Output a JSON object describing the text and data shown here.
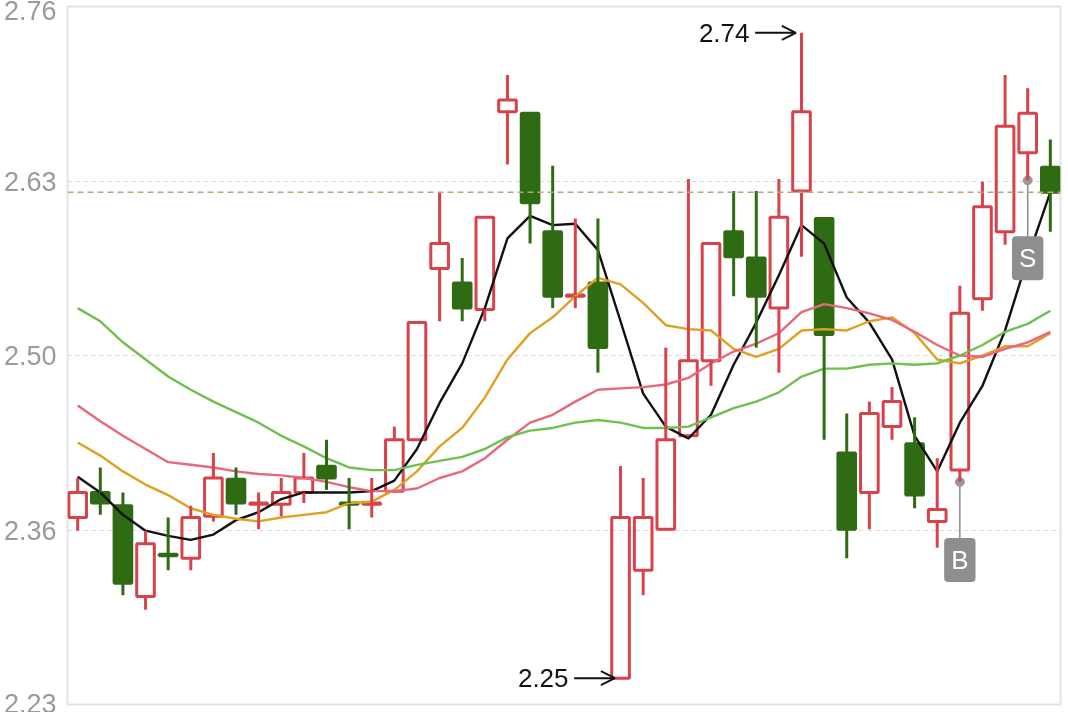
{
  "chart_data": {
    "type": "candlestick",
    "categories": [
      null,
      null,
      null,
      null,
      null,
      null,
      null,
      null,
      null,
      null,
      null,
      null,
      null,
      null,
      null,
      null,
      null,
      null,
      null,
      null,
      null,
      null,
      null,
      null,
      null,
      null,
      null,
      null,
      null,
      null,
      null,
      null,
      null,
      null,
      null,
      null,
      null,
      null,
      null,
      null,
      null,
      null,
      null,
      null
    ],
    "ohlc": [
      [
        2.372,
        2.402,
        2.362,
        2.391
      ],
      [
        2.391,
        2.41,
        2.374,
        2.383
      ],
      [
        2.381,
        2.391,
        2.313,
        2.322
      ],
      [
        2.312,
        2.362,
        2.302,
        2.352
      ],
      [
        2.344,
        2.372,
        2.332,
        2.343
      ],
      [
        2.341,
        2.381,
        2.332,
        2.372
      ],
      [
        2.373,
        2.421,
        2.369,
        2.402
      ],
      [
        2.401,
        2.41,
        2.374,
        2.383
      ],
      [
        2.382,
        2.391,
        2.363,
        2.383
      ],
      [
        2.382,
        2.402,
        2.373,
        2.391
      ],
      [
        2.391,
        2.421,
        2.383,
        2.402
      ],
      [
        2.411,
        2.431,
        2.393,
        2.402
      ],
      [
        2.383,
        2.402,
        2.363,
        2.382
      ],
      [
        2.382,
        2.402,
        2.372,
        2.383
      ],
      [
        2.392,
        2.441,
        2.392,
        2.431
      ],
      [
        2.431,
        2.52,
        2.431,
        2.52
      ],
      [
        2.561,
        2.619,
        2.521,
        2.58
      ],
      [
        2.55,
        2.569,
        2.521,
        2.531
      ],
      [
        2.53,
        2.6,
        2.521,
        2.6
      ],
      [
        2.68,
        2.708,
        2.64,
        2.689
      ],
      [
        2.679,
        2.679,
        2.58,
        2.611
      ],
      [
        2.589,
        2.639,
        2.531,
        2.54
      ],
      [
        2.54,
        2.599,
        2.531,
        2.541
      ],
      [
        2.55,
        2.599,
        2.482,
        2.501
      ],
      [
        2.25,
        2.411,
        2.25,
        2.372
      ],
      [
        2.332,
        2.402,
        2.313,
        2.372
      ],
      [
        2.363,
        2.501,
        2.363,
        2.431
      ],
      [
        2.434,
        2.629,
        2.434,
        2.491
      ],
      [
        2.491,
        2.58,
        2.472,
        2.58
      ],
      [
        2.589,
        2.62,
        2.54,
        2.57
      ],
      [
        2.569,
        2.62,
        2.501,
        2.54
      ],
      [
        2.531,
        2.629,
        2.482,
        2.6
      ],
      [
        2.62,
        2.74,
        2.57,
        2.68
      ],
      [
        2.599,
        2.599,
        2.431,
        2.511
      ],
      [
        2.421,
        2.451,
        2.341,
        2.363
      ],
      [
        2.391,
        2.46,
        2.363,
        2.451
      ],
      [
        2.441,
        2.471,
        2.431,
        2.46
      ],
      [
        2.428,
        2.448,
        2.379,
        2.389
      ],
      [
        2.369,
        2.417,
        2.349,
        2.378
      ],
      [
        2.408,
        2.548,
        2.399,
        2.527
      ],
      [
        2.538,
        2.627,
        2.529,
        2.608
      ],
      [
        2.589,
        2.708,
        2.579,
        2.669
      ],
      [
        2.649,
        2.698,
        2.628,
        2.679
      ],
      [
        2.638,
        2.659,
        2.589,
        2.619
      ]
    ],
    "colors": [
      "#d8434b",
      "#2f6b13",
      "#2f6b13",
      "#d8434b",
      "#2f6b13",
      "#d8434b",
      "#d8434b",
      "#2f6b13",
      "#d8434b",
      "#d8434b",
      "#d8434b",
      "#2f6b13",
      "#2f6b13",
      "#d8434b",
      "#d8434b",
      "#d8434b",
      "#d8434b",
      "#2f6b13",
      "#d8434b",
      "#d8434b",
      "#2f6b13",
      "#2f6b13",
      "#d8434b",
      "#2f6b13",
      "#d8434b",
      "#d8434b",
      "#d8434b",
      "#d8434b",
      "#d8434b",
      "#2f6b13",
      "#2f6b13",
      "#d8434b",
      "#d8434b",
      "#2f6b13",
      "#2f6b13",
      "#d8434b",
      "#d8434b",
      "#2f6b13",
      "#d8434b",
      "#d8434b",
      "#d8434b",
      "#d8434b",
      "#d8434b",
      "#2f6b13"
    ],
    "series": [
      {
        "type": "line",
        "color": "#111111",
        "values": [
          2.403,
          2.391,
          2.374,
          2.362,
          2.358,
          2.355,
          2.359,
          2.37,
          2.376,
          2.386,
          2.391,
          2.391,
          2.391,
          2.392,
          2.4,
          2.424,
          2.459,
          2.489,
          2.531,
          2.584,
          2.601,
          2.594,
          2.595,
          2.575,
          2.521,
          2.466,
          2.441,
          2.432,
          2.45,
          2.488,
          2.52,
          2.556,
          2.594,
          2.58,
          2.539,
          2.52,
          2.492,
          2.434,
          2.407,
          2.444,
          2.472,
          2.514,
          2.569,
          2.619
        ]
      },
      {
        "type": "line",
        "color": "#e0a020",
        "values": [
          2.429,
          2.419,
          2.407,
          2.397,
          2.389,
          2.379,
          2.374,
          2.371,
          2.369,
          2.372,
          2.374,
          2.376,
          2.383,
          2.384,
          2.393,
          2.407,
          2.426,
          2.44,
          2.463,
          2.492,
          2.512,
          2.524,
          2.54,
          2.554,
          2.549,
          2.535,
          2.518,
          2.515,
          2.514,
          2.5,
          2.494,
          2.5,
          2.514,
          2.515,
          2.514,
          2.521,
          2.524,
          2.512,
          2.492,
          2.489,
          2.495,
          2.502,
          2.502,
          2.512
        ]
      },
      {
        "type": "line",
        "color": "#e8687a",
        "values": [
          2.457,
          2.445,
          2.434,
          2.424,
          2.414,
          2.412,
          2.41,
          2.407,
          2.405,
          2.404,
          2.402,
          2.399,
          2.395,
          2.392,
          2.392,
          2.394,
          2.402,
          2.407,
          2.417,
          2.431,
          2.444,
          2.45,
          2.46,
          2.469,
          2.47,
          2.471,
          2.473,
          2.478,
          2.489,
          2.498,
          2.504,
          2.512,
          2.528,
          2.534,
          2.531,
          2.527,
          2.522,
          2.513,
          2.503,
          2.495,
          2.494,
          2.5,
          2.505,
          2.513
        ]
      },
      {
        "type": "line",
        "color": "#6ec14e",
        "values": [
          2.531,
          2.521,
          2.505,
          2.492,
          2.479,
          2.469,
          2.46,
          2.452,
          2.444,
          2.434,
          2.426,
          2.417,
          2.41,
          2.408,
          2.408,
          2.412,
          2.415,
          2.418,
          2.424,
          2.433,
          2.438,
          2.44,
          2.444,
          2.446,
          2.444,
          2.44,
          2.44,
          2.441,
          2.448,
          2.455,
          2.46,
          2.467,
          2.479,
          2.485,
          2.485,
          2.488,
          2.489,
          2.488,
          2.489,
          2.495,
          2.503,
          2.513,
          2.519,
          2.529
        ]
      }
    ],
    "ylim": [
      2.23,
      2.76
    ],
    "yticks": [
      2.23,
      {
        "value": 2.3625,
        "label": "2.36"
      },
      {
        "value": 2.495,
        "label": "2.50"
      },
      {
        "value": 2.6275,
        "label": "2.63"
      },
      2.76
    ],
    "grid": "y",
    "tick_labels": "y",
    "ref_lines": [
      {
        "axis": "y",
        "value": 2.619,
        "color": "#b8a878",
        "line_style": "dashed"
      }
    ],
    "annotations": [
      "2.74",
      "2.25",
      {
        "text": "B",
        "y": 2.399
      },
      {
        "text": "S",
        "y": 2.628
      }
    ]
  }
}
